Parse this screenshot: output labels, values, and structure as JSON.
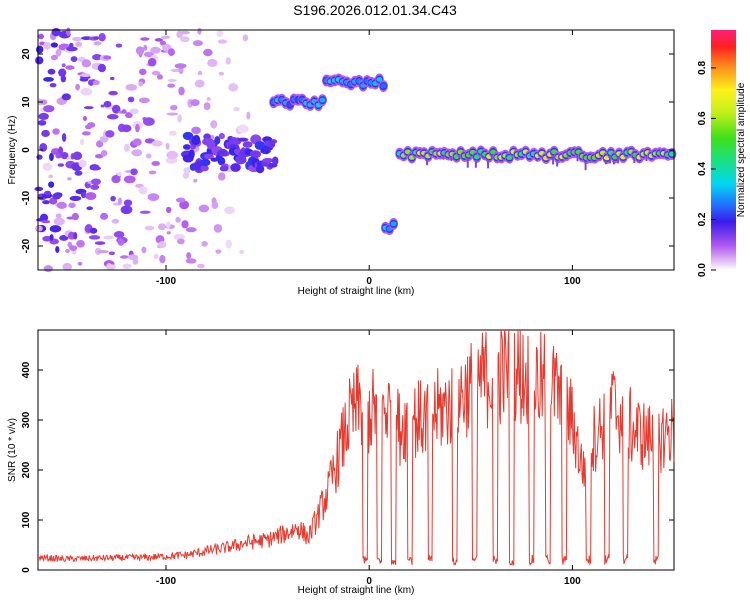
{
  "title": "S196.2026.012.01.34.C43",
  "colors": {
    "snr_line": "#e8392f",
    "frame": "#000000",
    "background": "#ffffff"
  },
  "chart_data": [
    {
      "type": "heatmap",
      "xlabel": "Height of straight line (km)",
      "ylabel": "Frequency (Hz)",
      "xlim": [
        -163,
        150
      ],
      "ylim": [
        -25,
        25
      ],
      "xticks": [
        -100,
        0,
        100
      ],
      "yticks": [
        -20,
        -10,
        0,
        10,
        20
      ],
      "colorbar": {
        "label": "Normalized spectral amplitude",
        "range": [
          0,
          0.95
        ],
        "ticks": [
          "0.0",
          "0.2",
          "0.4",
          "0.6",
          "0.8"
        ]
      },
      "features": [
        {
          "x_range": [
            -163,
            -60
          ],
          "freq_range": [
            -25,
            25
          ],
          "kind": "scattered noise",
          "amplitude": 0.1
        },
        {
          "x_range": [
            -90,
            -47
          ],
          "freq_range": [
            -4,
            3
          ],
          "kind": "weak band",
          "amplitude": 0.18
        },
        {
          "x_range": [
            -48,
            -22
          ],
          "freq_center": 10,
          "amplitude": 0.3
        },
        {
          "x_range": [
            -22,
            8
          ],
          "freq_center": 14,
          "amplitude": 0.35
        },
        {
          "x_range": [
            7,
            13
          ],
          "freq_center": -16,
          "amplitude": 0.35
        },
        {
          "x_range": [
            14,
            150
          ],
          "freq_center": -1,
          "amplitude": 0.6
        }
      ]
    },
    {
      "type": "line",
      "xlabel": "Height of straight line (km)",
      "ylabel": "SNR (10 * v/v)",
      "xlim": [
        -163,
        150
      ],
      "ylim": [
        0,
        480
      ],
      "xticks": [
        -100,
        0,
        100
      ],
      "yticks": [
        0,
        100,
        200,
        300,
        400
      ],
      "series": [
        {
          "name": "SNR",
          "color": "#e8392f",
          "x": [
            -163,
            -150,
            -130,
            -110,
            -90,
            -80,
            -70,
            -60,
            -50,
            -40,
            -35,
            -30,
            -25,
            -20,
            -15,
            -10,
            -5,
            0,
            5,
            10,
            15,
            20,
            25,
            30,
            40,
            50,
            60,
            70,
            80,
            90,
            100,
            105,
            110,
            120,
            130,
            140,
            150
          ],
          "values": [
            25,
            22,
            24,
            25,
            30,
            38,
            45,
            55,
            60,
            75,
            85,
            65,
            110,
            160,
            230,
            300,
            330,
            310,
            335,
            320,
            285,
            305,
            300,
            310,
            330,
            370,
            390,
            400,
            380,
            370,
            300,
            200,
            260,
            330,
            280,
            260,
            280
          ]
        }
      ],
      "dropouts_x": [
        -2,
        5,
        12,
        20,
        30,
        42,
        52,
        62,
        70,
        80,
        88,
        96,
        108,
        117,
        126,
        141
      ]
    }
  ]
}
